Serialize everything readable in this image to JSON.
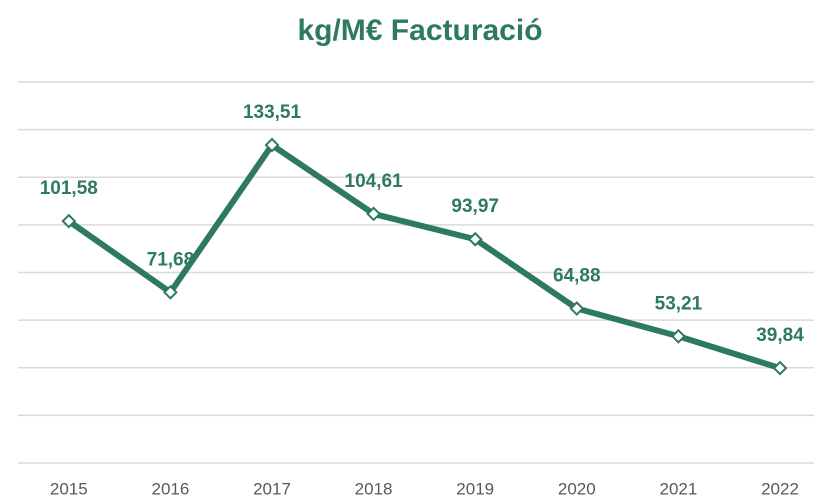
{
  "chart_data": {
    "type": "line",
    "title": "kg/M€ Facturació",
    "categories": [
      "2015",
      "2016",
      "2017",
      "2018",
      "2019",
      "2020",
      "2021",
      "2022"
    ],
    "series": [
      {
        "color": "#2e7a5c",
        "values": [
          101.58,
          71.68,
          133.51,
          104.61,
          93.97,
          64.88,
          53.21,
          39.84
        ],
        "value_labels": [
          "101,58",
          "71,68",
          "133,51",
          "104,61",
          "93,97",
          "64,88",
          "53,21",
          "39,84"
        ]
      }
    ],
    "ylim": [
      0,
      160
    ],
    "yticks": [
      0,
      20,
      40,
      60,
      80,
      100,
      120,
      140,
      160
    ],
    "grid": true
  }
}
